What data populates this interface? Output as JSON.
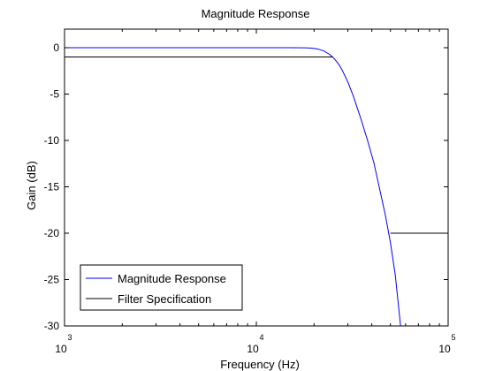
{
  "chart_data": {
    "type": "line",
    "title": "Magnitude Response",
    "xlabel": "Frequency (Hz)",
    "ylabel": "Gain (dB)",
    "xscale": "log",
    "xlim": [
      1000,
      100000
    ],
    "ylim": [
      -30,
      2
    ],
    "x_ticks": [
      {
        "value": 1000,
        "base": "10",
        "exp": "3"
      },
      {
        "value": 10000,
        "base": "10",
        "exp": "4"
      },
      {
        "value": 100000,
        "base": "10",
        "exp": "5"
      }
    ],
    "y_ticks": [
      {
        "value": 0,
        "label": "0"
      },
      {
        "value": -5,
        "label": "-5"
      },
      {
        "value": -10,
        "label": "-10"
      },
      {
        "value": -15,
        "label": "-15"
      },
      {
        "value": -20,
        "label": "-20"
      },
      {
        "value": -25,
        "label": "-25"
      },
      {
        "value": -30,
        "label": "-30"
      }
    ],
    "grid": false,
    "legend": "bottom-left",
    "series": [
      {
        "name": "Magnitude Response",
        "color": "#0000ff",
        "x": [
          1000,
          5000,
          10000,
          15000,
          18000,
          19500,
          21000,
          22500,
          24000,
          25000,
          26000,
          27000,
          28000,
          30000,
          32000,
          35000,
          38000,
          41000,
          44000,
          47000,
          50000,
          53000,
          56500
        ],
        "y": [
          0,
          0,
          0,
          0,
          -0.01,
          -0.05,
          -0.15,
          -0.35,
          -0.7,
          -1.0,
          -1.4,
          -1.85,
          -2.4,
          -3.7,
          -5.2,
          -7.6,
          -10.0,
          -12.4,
          -15.3,
          -18.0,
          -21.0,
          -24.5,
          -30
        ]
      },
      {
        "name": "Filter Specification",
        "color": "#000000",
        "segments": [
          {
            "x": [
              1000,
              25000
            ],
            "y": [
              -1,
              -1
            ]
          },
          {
            "x": [
              50000,
              100000
            ],
            "y": [
              -20,
              -20
            ]
          }
        ]
      }
    ]
  }
}
